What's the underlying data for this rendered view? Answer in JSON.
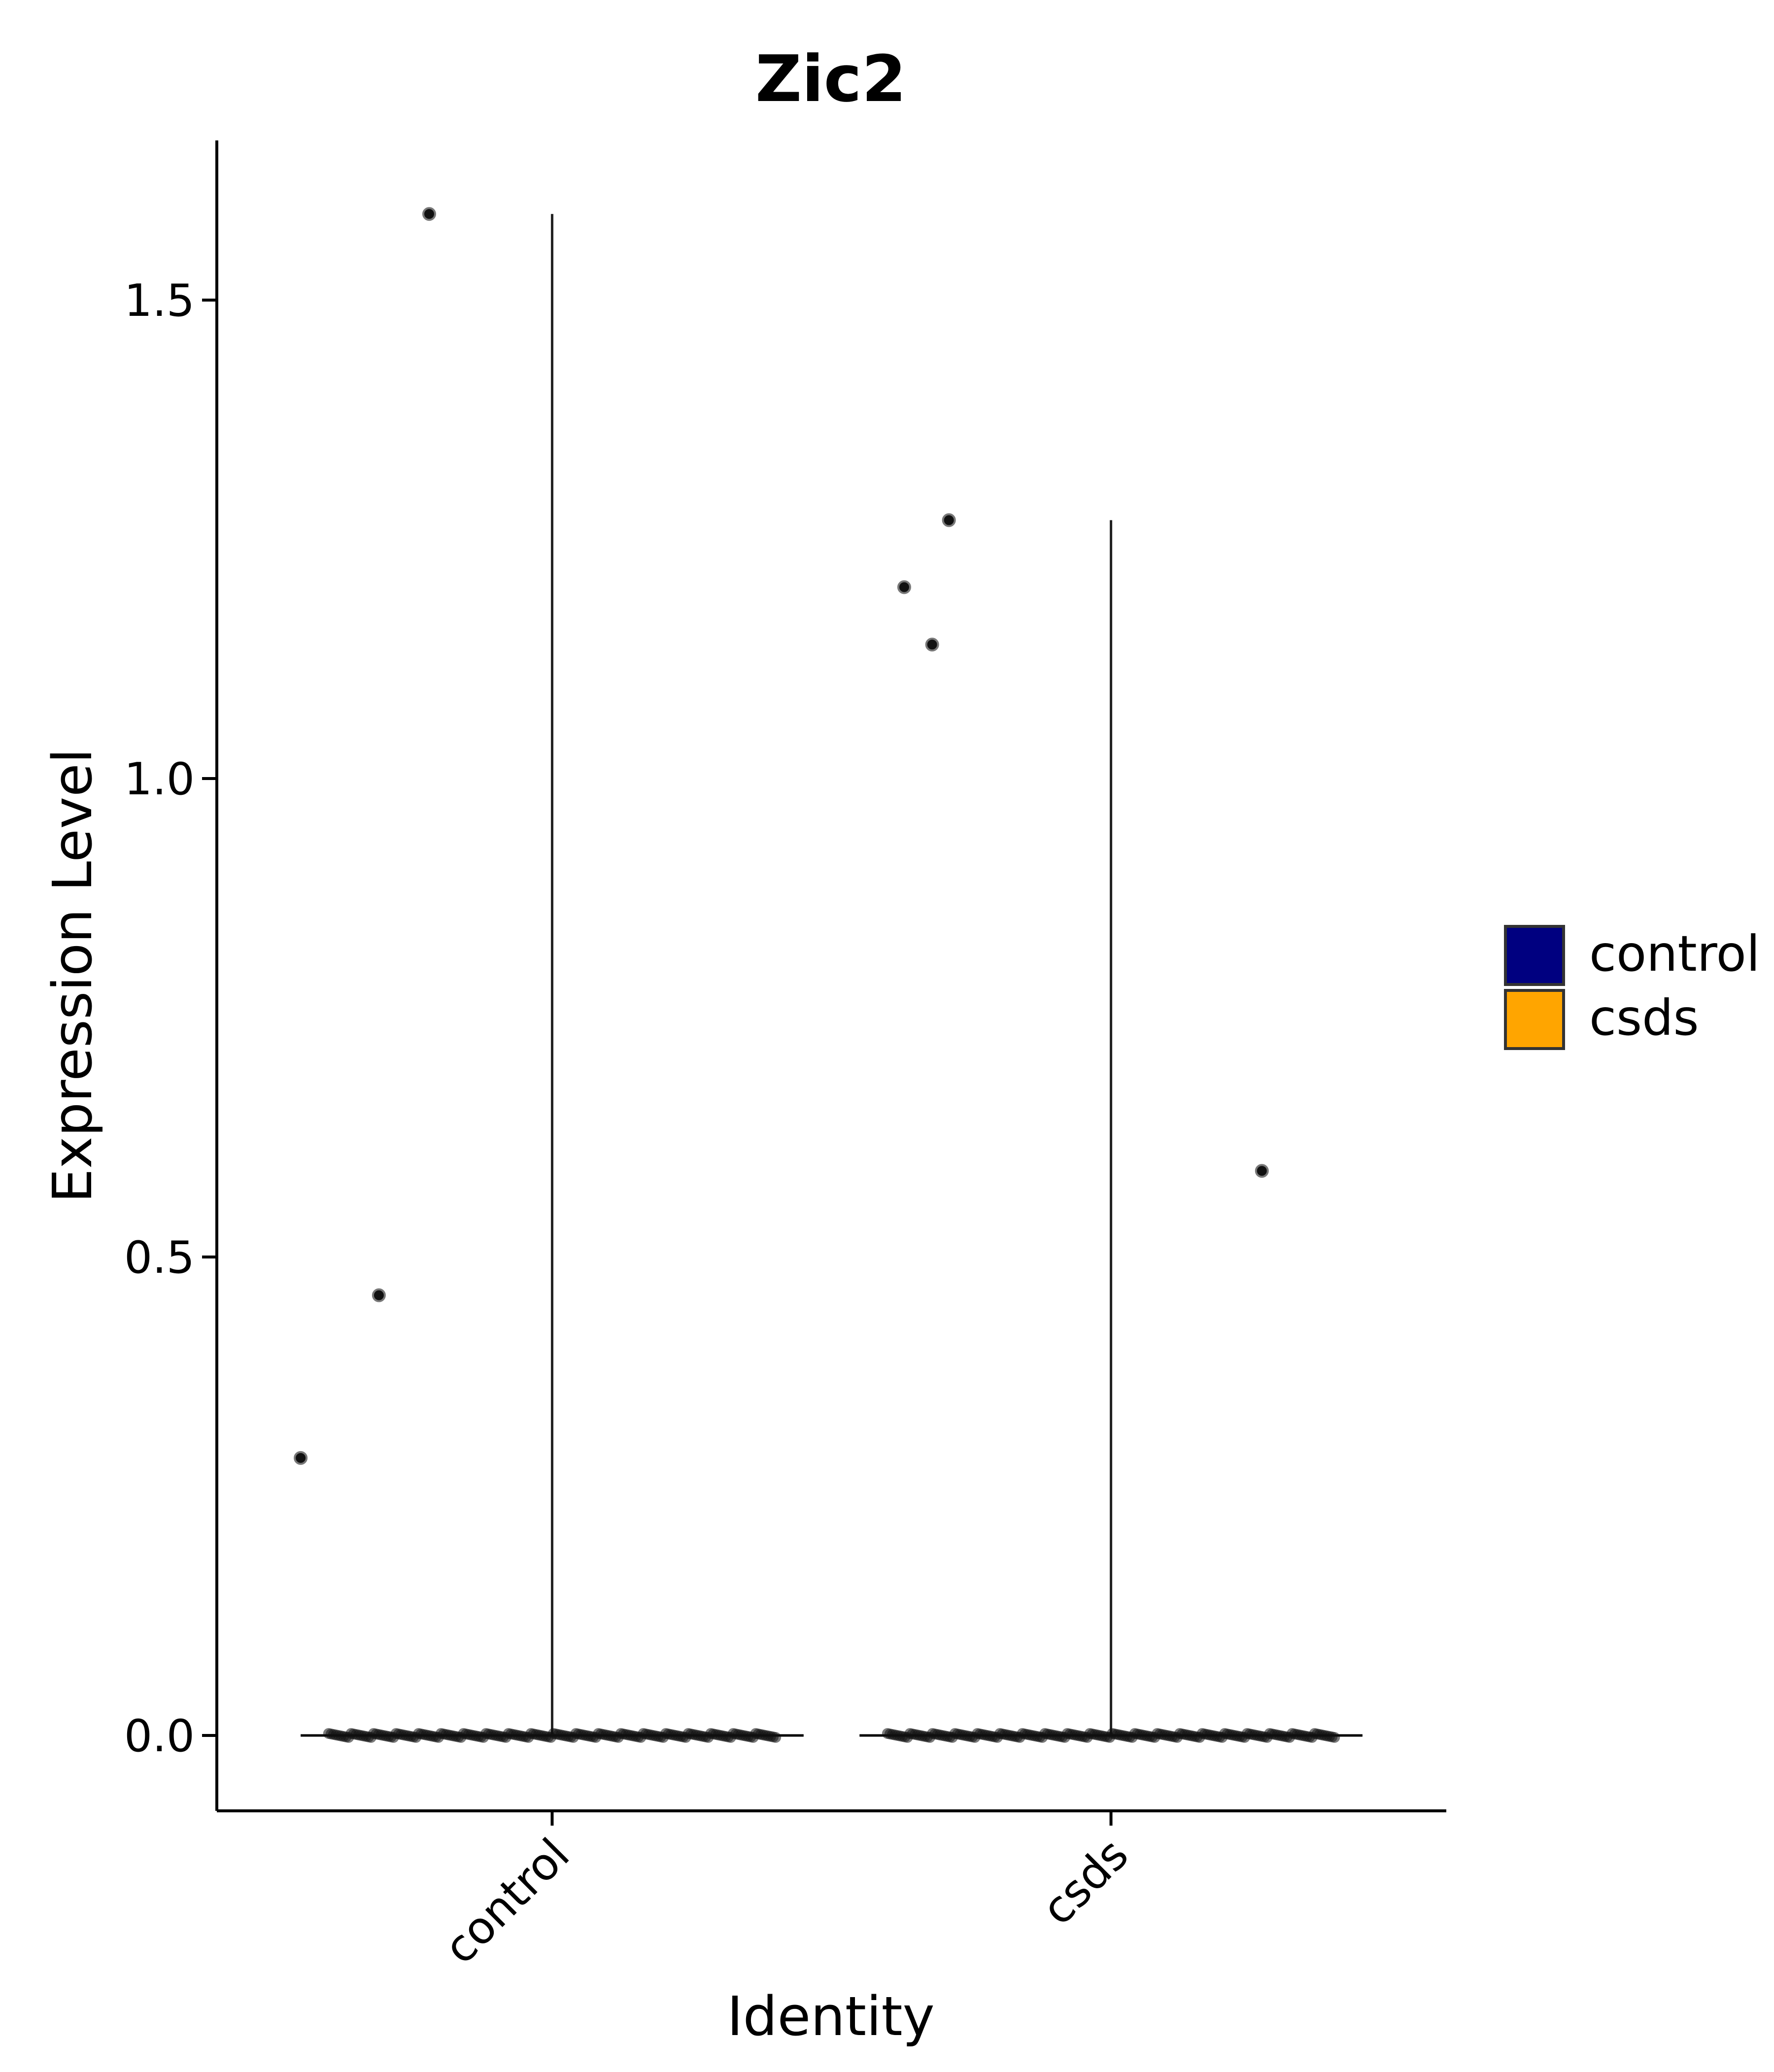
{
  "chart_data": {
    "type": "violin",
    "title": "Zic2",
    "xlabel": "Identity",
    "ylabel": "Expression Level",
    "categories": [
      "control",
      "csds"
    ],
    "ylim": [
      -0.08,
      1.65
    ],
    "yticks": [
      "0.0",
      "0.5",
      "1.0",
      "1.5"
    ],
    "series": [
      {
        "name": "control",
        "color": "#000080",
        "max": 1.59,
        "points": [
          {
            "x": -0.45,
            "y": 0.29
          },
          {
            "x": -0.31,
            "y": 0.46
          },
          {
            "x": -0.22,
            "y": 1.59
          }
        ]
      },
      {
        "name": "csds",
        "color": "#FFA500",
        "max": 1.27,
        "points": [
          {
            "x": -0.37,
            "y": 1.2
          },
          {
            "x": -0.32,
            "y": 1.14
          },
          {
            "x": -0.29,
            "y": 1.27
          },
          {
            "x": 0.27,
            "y": 0.59
          }
        ]
      }
    ],
    "legend": {
      "position": "right",
      "entries": [
        "control",
        "csds"
      ]
    },
    "grid": false
  }
}
